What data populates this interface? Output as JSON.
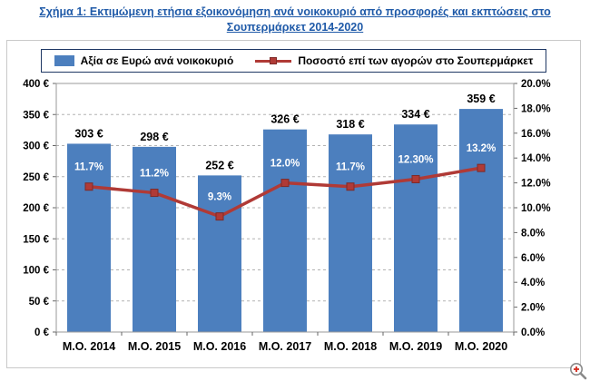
{
  "title": {
    "line1": "Σχήμα 1: Εκτιμώμενη ετήσια εξοικονόμηση ανά νοικοκυριό από προσφορές και εκπτώσεις στο",
    "line2": "Σουπερμάρκετ 2014-2020"
  },
  "legend": {
    "bar_label": "Αξία σε Ευρώ ανά νοικοκυριό",
    "line_label": "Ποσοστό επί των αγορών στο Σουπερμάρκετ"
  },
  "colors": {
    "bar": "#4c7fbe",
    "line": "#b03a36",
    "title": "#1f5aa8",
    "grid": "#b3b3b3",
    "axis": "#666666",
    "plot_border": "#9a9a9a"
  },
  "chart_data": {
    "type": "bar+line",
    "title": "Εκτιμώμενη ετήσια εξοικονόμηση ανά νοικοκυριό από προσφορές και εκπτώσεις στο Σουπερμάρκετ 2014-2020",
    "categories": [
      "Μ.Ο. 2014",
      "Μ.Ο. 2015",
      "Μ.Ο. 2016",
      "Μ.Ο. 2017",
      "Μ.Ο. 2018",
      "Μ.Ο. 2019",
      "Μ.Ο. 2020"
    ],
    "series": [
      {
        "name": "Αξία σε Ευρώ ανά νοικοκυριό",
        "type": "bar",
        "axis": "left",
        "values": [
          303,
          298,
          252,
          326,
          318,
          334,
          359
        ],
        "labels": [
          "303 €",
          "298 €",
          "252 €",
          "326 €",
          "318 €",
          "334 €",
          "359 €"
        ]
      },
      {
        "name": "Ποσοστό επί των αγορών στο Σουπερμάρκετ",
        "type": "line",
        "axis": "right",
        "values": [
          11.7,
          11.2,
          9.3,
          12.0,
          11.7,
          12.3,
          13.2
        ],
        "labels": [
          "11.7%",
          "11.2%",
          "9.3%",
          "12.0%",
          "11.7%",
          "12.30%",
          "13.2%"
        ]
      }
    ],
    "left_axis": {
      "min": 0,
      "max": 400,
      "step": 50,
      "ticks": [
        "0 €",
        "50 €",
        "100 €",
        "150 €",
        "200 €",
        "250 €",
        "300 €",
        "350 €",
        "400 €"
      ]
    },
    "right_axis": {
      "min": 0,
      "max": 20,
      "step": 2,
      "ticks": [
        "0.0%",
        "2.0%",
        "4.0%",
        "6.0%",
        "8.0%",
        "10.0%",
        "12.0%",
        "14.0%",
        "16.0%",
        "18.0%",
        "20.0%"
      ]
    },
    "grid": true,
    "legend_position": "top"
  },
  "zoom": {
    "label": "zoom"
  }
}
